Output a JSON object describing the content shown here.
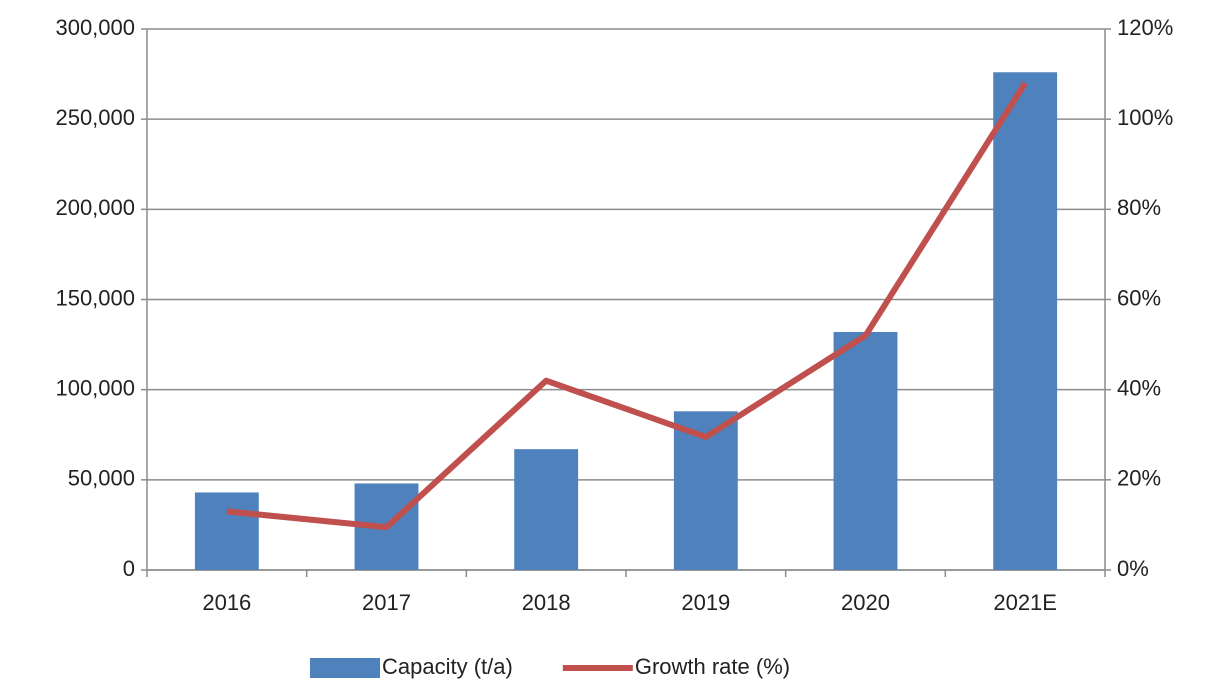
{
  "chart_data": {
    "type": "bar",
    "categories": [
      "2016",
      "2017",
      "2018",
      "2019",
      "2020",
      "2021E"
    ],
    "series": [
      {
        "name": "Capacity (t/a)",
        "color": "#4f81bd",
        "type": "bar",
        "values": [
          43000,
          48000,
          67000,
          88000,
          132000,
          276000
        ]
      },
      {
        "name": "Growth rate (%)",
        "color": "#c0504d",
        "type": "line",
        "axis": "y2",
        "values": [
          13,
          9.5,
          42,
          29.5,
          52,
          108
        ]
      }
    ],
    "ylim": [
      0,
      300000
    ],
    "yticks": [
      0,
      {
        "value": 50000,
        "label": "50,000"
      },
      {
        "value": 100000,
        "label": "100,000"
      },
      {
        "value": 150000,
        "label": "150,000"
      },
      {
        "value": 200000,
        "label": "200,000"
      },
      {
        "value": 250000,
        "label": "250,000"
      },
      {
        "value": 300000,
        "label": "300,000"
      }
    ],
    "y2lim": [
      0,
      120
    ],
    "y2ticks": [
      {
        "value": 0,
        "label": "0%"
      },
      {
        "value": 20,
        "label": "20%"
      },
      {
        "value": 40,
        "label": "40%"
      },
      {
        "value": 60,
        "label": "60%"
      },
      {
        "value": 80,
        "label": "80%"
      },
      {
        "value": 100,
        "label": "100%"
      },
      {
        "value": 120,
        "label": "120%"
      }
    ],
    "grid": true,
    "legend": "bottom"
  }
}
